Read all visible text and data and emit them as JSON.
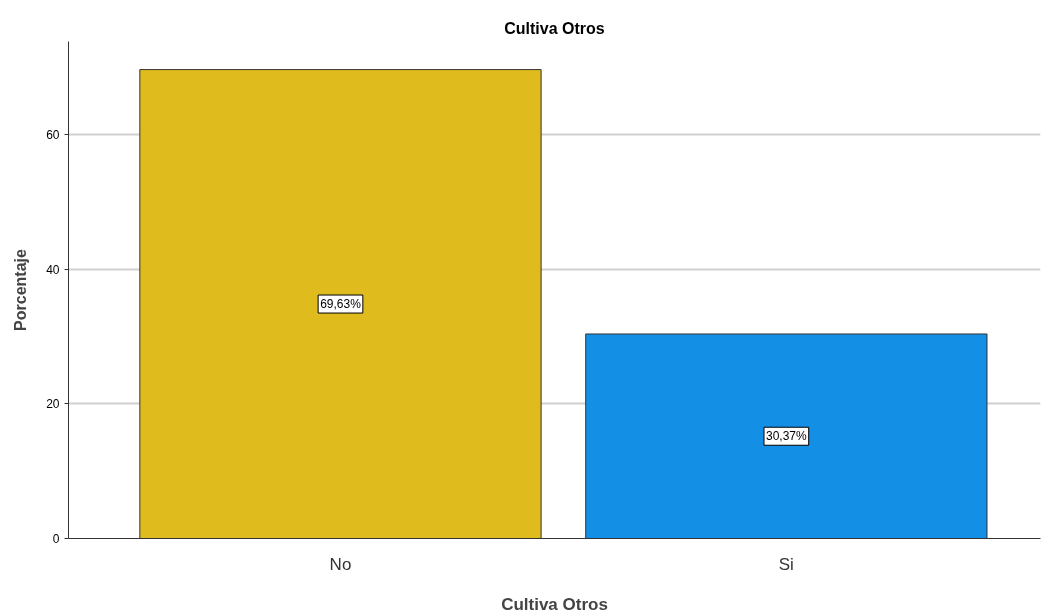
{
  "chart_data": {
    "type": "bar",
    "title": "Cultiva Otros",
    "xlabel": "Cultiva Otros",
    "ylabel": "Porcentaje",
    "categories": [
      "No",
      "Si"
    ],
    "values": [
      69.63,
      30.37
    ],
    "colors": [
      "#dfbb1e",
      "#1390e5"
    ],
    "value_labels": [
      "69,63%",
      "30,37%"
    ],
    "ylim": [
      0,
      73.8
    ],
    "yticks": [
      0,
      20,
      40,
      60
    ],
    "grid": "y"
  }
}
